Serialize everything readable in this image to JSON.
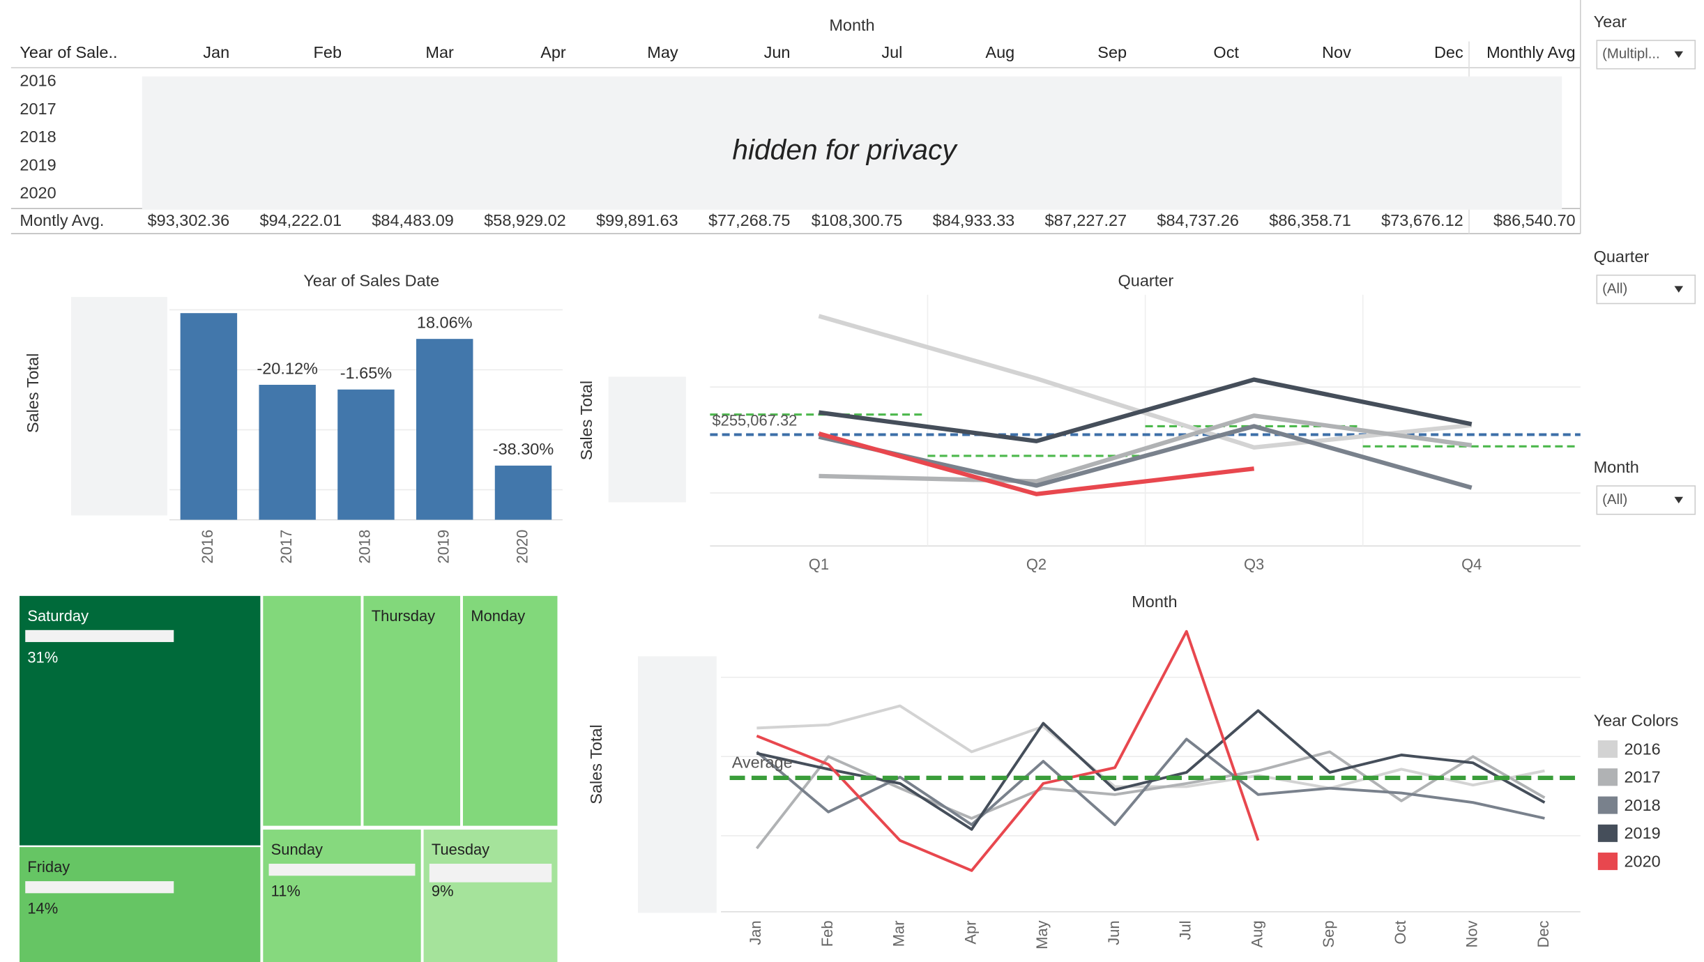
{
  "table": {
    "column_header": "Month",
    "row_header": "Year of Sale..",
    "columns": [
      "Jan",
      "Feb",
      "Mar",
      "Apr",
      "May",
      "Jun",
      "Jul",
      "Aug",
      "Sep",
      "Oct",
      "Nov",
      "Dec",
      "Monthly Avg"
    ],
    "rows": [
      "2016",
      "2017",
      "2018",
      "2019",
      "2020"
    ],
    "footer_label": "Montly Avg.",
    "footer_values": [
      "$93,302.36",
      "$94,222.01",
      "$84,483.09",
      "$58,929.02",
      "$99,891.63",
      "$77,268.75",
      "$108,300.75",
      "$84,933.33",
      "$87,227.27",
      "$84,737.26",
      "$86,358.71",
      "$73,676.12",
      "$86,540.70"
    ],
    "privacy_note": "hidden for privacy"
  },
  "filters": [
    {
      "label": "Year",
      "value": "(Multipl..."
    },
    {
      "label": "Quarter",
      "value": "(All)"
    },
    {
      "label": "Month",
      "value": "(All)"
    }
  ],
  "chart_data": [
    {
      "type": "bar",
      "title": "Year of Sales Date",
      "y_label": "Sales Total",
      "categories": [
        "2016",
        "2017",
        "2018",
        "2019",
        "2020"
      ],
      "values": [
        1189000,
        950000,
        934300,
        1103000,
        680600
      ],
      "bar_labels": [
        null,
        "-20.12%",
        "-1.65%",
        "18.06%",
        "-38.30%"
      ],
      "color": "#4277ab",
      "ylim": [
        500000,
        1250000
      ],
      "yticks": [
        600000,
        800000,
        1000000,
        1200000
      ],
      "grid": true
    },
    {
      "type": "line",
      "title": "Quarter",
      "y_label": "Sales Total",
      "categories": [
        "Q1",
        "Q2",
        "Q3",
        "Q4"
      ],
      "series": [
        {
          "name": "2016",
          "color": "#d3d3d3",
          "values": [
            367000,
            308000,
            243000,
            264000
          ]
        },
        {
          "name": "2017",
          "color": "#b0b2b4",
          "values": [
            216000,
            211000,
            273000,
            245000
          ]
        },
        {
          "name": "2018",
          "color": "#79818c",
          "values": [
            253000,
            207000,
            263000,
            205000
          ]
        },
        {
          "name": "2019",
          "color": "#454e5a",
          "values": [
            276000,
            249000,
            307000,
            265000
          ]
        },
        {
          "name": "2020",
          "color": "#e8474e",
          "values": [
            256000,
            199000,
            223000,
            null
          ]
        }
      ],
      "ylim": [
        150000,
        387000
      ],
      "yticks": [
        200000,
        300000
      ],
      "grid": true,
      "reference_line": {
        "value": 255067.32,
        "label": "$255,067.32",
        "color": "#3d6fa8"
      },
      "pane_averages": {
        "values": [
          274000,
          235000,
          263000,
          244000
        ],
        "color": "#4cb84c"
      }
    },
    {
      "type": "line",
      "title": "Month",
      "y_label": "Sales Total",
      "categories": [
        "Jan",
        "Feb",
        "Mar",
        "Apr",
        "May",
        "Jun",
        "Jul",
        "Aug",
        "Sep",
        "Oct",
        "Nov",
        "Dec"
      ],
      "series": [
        {
          "name": "2016",
          "color": "#d3d3d3",
          "values": [
            118000,
            120000,
            132000,
            103000,
            119000,
            81000,
            81000,
            88000,
            80000,
            92000,
            82000,
            91000
          ]
        },
        {
          "name": "2017",
          "color": "#b0b2b4",
          "values": [
            42000,
            100000,
            80000,
            61000,
            80000,
            76000,
            83000,
            91000,
            103000,
            72000,
            100000,
            74000
          ]
        },
        {
          "name": "2018",
          "color": "#79818c",
          "values": [
            103000,
            65000,
            87000,
            57000,
            97000,
            57000,
            111000,
            76000,
            80000,
            77000,
            71000,
            61000
          ]
        },
        {
          "name": "2019",
          "color": "#454e5a",
          "values": [
            102000,
            92000,
            83000,
            54000,
            121000,
            79000,
            90000,
            129000,
            90000,
            101000,
            96000,
            71000
          ]
        },
        {
          "name": "2020",
          "color": "#e8474e",
          "values": [
            113000,
            95000,
            47000,
            28000,
            83000,
            93000,
            179000,
            47000,
            null,
            null,
            null,
            null
          ]
        }
      ],
      "ylim": [
        2000,
        164000
      ],
      "yticks": [
        50000,
        100000,
        150000
      ],
      "grid": true,
      "reference_line": {
        "value": 86540.7,
        "label": "Average",
        "color": "#3a9d3a"
      },
      "legend_title": "Year Colors"
    },
    {
      "type": "treemap",
      "categories": [
        "Saturday",
        "Friday",
        null,
        "Thursday",
        "Monday",
        "Sunday",
        "Tuesday"
      ],
      "values": [
        31,
        14,
        12,
        12,
        11,
        11,
        9
      ],
      "value_labels": [
        "31%",
        "14%",
        null,
        null,
        null,
        "11%",
        "9%"
      ],
      "colors": [
        "#006a3a",
        "#66c564",
        "#82d87b",
        "#82d87b",
        "#82d87b",
        "#86d97e",
        "#a5e39b"
      ]
    }
  ]
}
